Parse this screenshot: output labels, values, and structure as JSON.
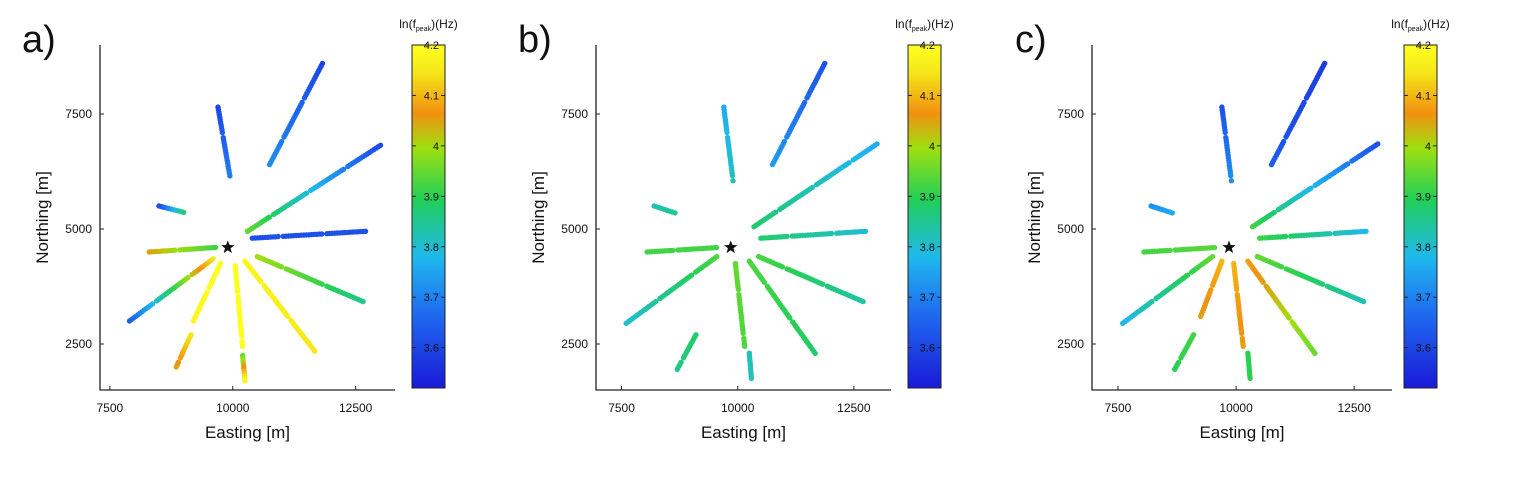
{
  "chart_data": [
    {
      "type": "scatter",
      "panel_label": "a)",
      "xlabel": "Easting [m]",
      "ylabel": "Northing [m]",
      "x_ticks": [
        "7500",
        "10000",
        "12500"
      ],
      "y_ticks": [
        "2500",
        "5000",
        "7500"
      ],
      "xlim": [
        7300,
        13300
      ],
      "ylim": [
        1500,
        9000
      ],
      "colorbar": {
        "title": "ln(f",
        "title_sub": "peak",
        "title_end": ")(Hz)",
        "ticks": [
          "4.2",
          "4.1",
          "4",
          "3.9",
          "3.8",
          "3.7",
          "3.6"
        ],
        "range": [
          3.52,
          4.2
        ],
        "colormap": "jet"
      },
      "source": {
        "x": 9900,
        "y": 4600,
        "marker": "star"
      },
      "profiles": [
        {
          "x0": 10300,
          "y0": 4950,
          "x1": 13050,
          "y1": 6850,
          "v0": 3.95,
          "v1": 3.6
        },
        {
          "x0": 10750,
          "y0": 6400,
          "x1": 11850,
          "y1": 8650,
          "v0": 3.72,
          "v1": 3.6
        },
        {
          "x0": 9700,
          "y0": 7650,
          "x1": 9950,
          "y1": 6100,
          "v0": 3.6,
          "v1": 3.7
        },
        {
          "x0": 8500,
          "y0": 5500,
          "x1": 9050,
          "y1": 5350,
          "v0": 3.6,
          "v1": 3.9
        },
        {
          "x0": 10400,
          "y0": 4800,
          "x1": 12700,
          "y1": 4950,
          "v0": 3.62,
          "v1": 3.62
        },
        {
          "x0": 8300,
          "y0": 4500,
          "x1": 9650,
          "y1": 4600,
          "v0": 4.05,
          "v1": 3.92
        },
        {
          "x0": 10500,
          "y0": 4400,
          "x1": 12700,
          "y1": 3400,
          "v0": 4.0,
          "v1": 3.85
        },
        {
          "x0": 10250,
          "y0": 4300,
          "x1": 11700,
          "y1": 2300,
          "v0": 4.18,
          "v1": 4.15
        },
        {
          "x0": 10050,
          "y0": 4200,
          "x1": 10200,
          "y1": 2450,
          "v0": 4.2,
          "v1": 4.2
        },
        {
          "x0": 9750,
          "y0": 4250,
          "x1": 9200,
          "y1": 3000,
          "v0": 4.2,
          "v1": 4.18
        },
        {
          "x0": 9600,
          "y0": 4350,
          "x1": 7900,
          "y1": 3000,
          "v0": 4.15,
          "v1": 3.65
        },
        {
          "x0": 9150,
          "y0": 2700,
          "x1": 8850,
          "y1": 2000,
          "v0": 4.15,
          "v1": 4.05
        },
        {
          "x0": 10200,
          "y0": 2250,
          "x1": 10250,
          "y1": 1700,
          "v0": 3.95,
          "v1": 4.18
        }
      ]
    },
    {
      "type": "scatter",
      "panel_label": "b)",
      "xlabel": "Easting [m]",
      "ylabel": "Northing [m]",
      "x_ticks": [
        "7500",
        "10000",
        "12500"
      ],
      "y_ticks": [
        "2500",
        "5000",
        "7500"
      ],
      "xlim": [
        6950,
        13300
      ],
      "ylim": [
        1500,
        9000
      ],
      "colorbar": {
        "title": "ln(f",
        "title_sub": "peak",
        "title_end": ")(Hz)",
        "ticks": [
          "4.2",
          "4.1",
          "4",
          "3.9",
          "3.8",
          "3.7",
          "3.6"
        ],
        "range": [
          3.52,
          4.2
        ],
        "colormap": "jet"
      },
      "source": {
        "x": 9850,
        "y": 4600,
        "marker": "star"
      },
      "profiles": [
        {
          "x0": 10350,
          "y0": 5050,
          "x1": 13000,
          "y1": 6850,
          "v0": 3.88,
          "v1": 3.76
        },
        {
          "x0": 10750,
          "y0": 6400,
          "x1": 11900,
          "y1": 8650,
          "v0": 3.74,
          "v1": 3.62
        },
        {
          "x0": 9700,
          "y0": 7650,
          "x1": 9900,
          "y1": 6050,
          "v0": 3.76,
          "v1": 3.82
        },
        {
          "x0": 8200,
          "y0": 5500,
          "x1": 8650,
          "y1": 5350,
          "v0": 3.82,
          "v1": 3.85
        },
        {
          "x0": 10500,
          "y0": 4800,
          "x1": 12750,
          "y1": 4950,
          "v0": 3.88,
          "v1": 3.8
        },
        {
          "x0": 8050,
          "y0": 4500,
          "x1": 9600,
          "y1": 4600,
          "v0": 3.92,
          "v1": 3.92
        },
        {
          "x0": 10450,
          "y0": 4400,
          "x1": 12750,
          "y1": 3400,
          "v0": 3.93,
          "v1": 3.83
        },
        {
          "x0": 10250,
          "y0": 4300,
          "x1": 11700,
          "y1": 2250,
          "v0": 3.93,
          "v1": 3.88
        },
        {
          "x0": 9950,
          "y0": 4250,
          "x1": 10150,
          "y1": 2450,
          "v0": 3.95,
          "v1": 3.93
        },
        {
          "x0": 9550,
          "y0": 4400,
          "x1": 7600,
          "y1": 2950,
          "v0": 3.93,
          "v1": 3.8
        },
        {
          "x0": 9100,
          "y0": 2700,
          "x1": 8700,
          "y1": 1950,
          "v0": 3.88,
          "v1": 3.86
        },
        {
          "x0": 10250,
          "y0": 2300,
          "x1": 10300,
          "y1": 1700,
          "v0": 3.82,
          "v1": 3.82
        }
      ]
    },
    {
      "type": "scatter",
      "panel_label": "c)",
      "xlabel": "Easting [m]",
      "ylabel": "Northing [m]",
      "x_ticks": [
        "7500",
        "10000",
        "12500"
      ],
      "y_ticks": [
        "2500",
        "5000",
        "7500"
      ],
      "xlim": [
        6950,
        13300
      ],
      "ylim": [
        1500,
        9000
      ],
      "colorbar": {
        "title": "ln(f",
        "title_sub": "peak",
        "title_end": ")(Hz)",
        "ticks": [
          "4.2",
          "4.1",
          "4",
          "3.9",
          "3.8",
          "3.7",
          "3.6"
        ],
        "range": [
          3.52,
          4.2
        ],
        "colormap": "jet"
      },
      "source": {
        "x": 9850,
        "y": 4600,
        "marker": "star"
      },
      "profiles": [
        {
          "x0": 10350,
          "y0": 5050,
          "x1": 13000,
          "y1": 6850,
          "v0": 3.92,
          "v1": 3.62
        },
        {
          "x0": 10750,
          "y0": 6400,
          "x1": 11900,
          "y1": 8650,
          "v0": 3.64,
          "v1": 3.58
        },
        {
          "x0": 9700,
          "y0": 7650,
          "x1": 9900,
          "y1": 6050,
          "v0": 3.62,
          "v1": 3.72
        },
        {
          "x0": 8200,
          "y0": 5500,
          "x1": 8650,
          "y1": 5350,
          "v0": 3.72,
          "v1": 3.76
        },
        {
          "x0": 10500,
          "y0": 4800,
          "x1": 12750,
          "y1": 4950,
          "v0": 3.92,
          "v1": 3.78
        },
        {
          "x0": 8050,
          "y0": 4500,
          "x1": 9600,
          "y1": 4600,
          "v0": 3.92,
          "v1": 3.94
        },
        {
          "x0": 10450,
          "y0": 4400,
          "x1": 12750,
          "y1": 3400,
          "v0": 3.95,
          "v1": 3.82
        },
        {
          "x0": 10250,
          "y0": 4300,
          "x1": 11700,
          "y1": 2250,
          "v0": 4.08,
          "v1": 3.95
        },
        {
          "x0": 9950,
          "y0": 4250,
          "x1": 10150,
          "y1": 2450,
          "v0": 4.1,
          "v1": 4.05
        },
        {
          "x0": 9700,
          "y0": 4300,
          "x1": 9250,
          "y1": 3100,
          "v0": 4.1,
          "v1": 4.05
        },
        {
          "x0": 9500,
          "y0": 4400,
          "x1": 7600,
          "y1": 2950,
          "v0": 3.95,
          "v1": 3.78
        },
        {
          "x0": 9100,
          "y0": 2700,
          "x1": 8700,
          "y1": 1950,
          "v0": 3.92,
          "v1": 3.9
        },
        {
          "x0": 10250,
          "y0": 2300,
          "x1": 10300,
          "y1": 1700,
          "v0": 3.9,
          "v1": 3.9
        }
      ]
    }
  ]
}
